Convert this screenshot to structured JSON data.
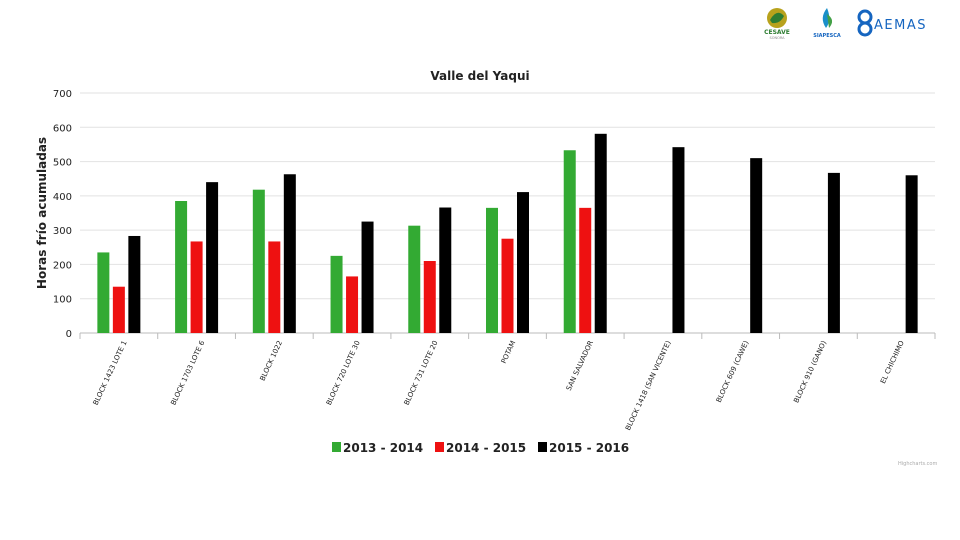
{
  "logos": {
    "cesave": {
      "name": "CESAVE",
      "sub": "SONORA"
    },
    "siapesca": {
      "name": "SIAPESCA"
    },
    "aemas": {
      "name": "AEMAS"
    }
  },
  "credit": "Highcharts.com",
  "chart_data": {
    "type": "bar",
    "title": "Valle del Yaqui",
    "xlabel": "",
    "ylabel": "Horas frío acumuladas",
    "ylim": [
      0,
      700
    ],
    "yticks": [
      0,
      100,
      200,
      300,
      400,
      500,
      600,
      700
    ],
    "grid": true,
    "legend_position": "bottom-center",
    "categories": [
      "BLOCK 1423 LOTE 1",
      "BLOCK 1703 LOTE 6",
      "BLOCK 1022",
      "BLOCK 720 LOTE 30",
      "BLOCK 731 LOTE 20",
      "POTAM",
      "SAN SALVADOR",
      "BLOCK 1418 (SAN VICENTE)",
      "BLOCK 609 (CAWE)",
      "BLOCK 910 (GANO)",
      "EL CHICHIMO"
    ],
    "series": [
      {
        "name": "2013 - 2014",
        "color": "#33aa33",
        "values": [
          235,
          385,
          418,
          225,
          313,
          365,
          533,
          null,
          null,
          null,
          null
        ]
      },
      {
        "name": "2014 - 2015",
        "color": "#ee1111",
        "values": [
          135,
          267,
          267,
          165,
          210,
          275,
          365,
          null,
          null,
          null,
          null
        ]
      },
      {
        "name": "2015 - 2016",
        "color": "#000000",
        "values": [
          283,
          440,
          463,
          325,
          366,
          411,
          581,
          542,
          510,
          467,
          460
        ]
      }
    ]
  }
}
